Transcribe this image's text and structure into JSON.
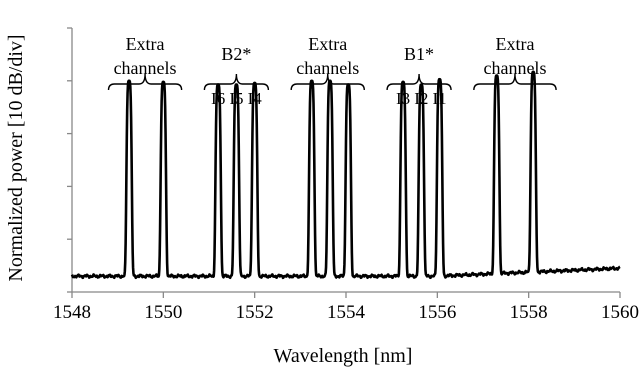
{
  "chart_data": {
    "type": "line",
    "title": "",
    "xlabel": "Wavelength [nm]",
    "ylabel": "Normalized power [10 dB/div]",
    "xlim": [
      1548,
      1560
    ],
    "ylim": [
      0,
      5
    ],
    "x_ticks": [
      "1548",
      "1550",
      "1552",
      "1554",
      "1556",
      "1558",
      "1560"
    ],
    "y_ticks": [
      0,
      1,
      2,
      3,
      4,
      5
    ],
    "grid": false,
    "legend": "none",
    "baseline": 0.3,
    "noise_end": 0.45,
    "peaks": [
      {
        "x": 1549.25,
        "y": 4.0,
        "label": ""
      },
      {
        "x": 1550.0,
        "y": 3.98,
        "label": ""
      },
      {
        "x": 1551.2,
        "y": 3.93,
        "label": "I6"
      },
      {
        "x": 1551.6,
        "y": 3.93,
        "label": "I5"
      },
      {
        "x": 1552.0,
        "y": 3.96,
        "label": "I4"
      },
      {
        "x": 1553.25,
        "y": 4.0,
        "label": ""
      },
      {
        "x": 1553.65,
        "y": 4.0,
        "label": ""
      },
      {
        "x": 1554.05,
        "y": 3.93,
        "label": ""
      },
      {
        "x": 1555.25,
        "y": 3.98,
        "label": "I3"
      },
      {
        "x": 1555.65,
        "y": 3.93,
        "label": "I2"
      },
      {
        "x": 1556.05,
        "y": 4.03,
        "label": "I1"
      },
      {
        "x": 1557.3,
        "y": 4.1,
        "label": ""
      },
      {
        "x": 1558.1,
        "y": 4.17,
        "label": ""
      }
    ],
    "annotations": [
      {
        "lines": [
          "Extra",
          "channels"
        ],
        "x_from": 1548.8,
        "x_to": 1550.4
      },
      {
        "lines": [
          "B2*"
        ],
        "x_from": 1550.9,
        "x_to": 1552.3
      },
      {
        "lines": [
          "Extra",
          "channels"
        ],
        "x_from": 1552.8,
        "x_to": 1554.4
      },
      {
        "lines": [
          "B1*"
        ],
        "x_from": 1554.9,
        "x_to": 1556.3
      },
      {
        "lines": [
          "Extra",
          "channels"
        ],
        "x_from": 1556.8,
        "x_to": 1558.6
      }
    ]
  }
}
